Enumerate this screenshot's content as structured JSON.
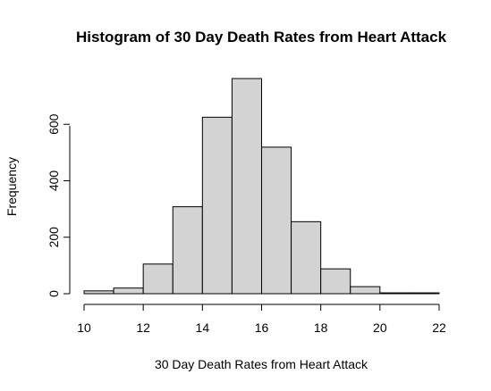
{
  "chart_data": {
    "type": "bar",
    "title": "Histogram of 30 Day Death Rates from Heart Attack",
    "xlabel": "30 Day Death Rates from Heart Attack",
    "ylabel": "Frequency",
    "bins": [
      {
        "from": 10,
        "to": 11,
        "count": 10
      },
      {
        "from": 11,
        "to": 12,
        "count": 20
      },
      {
        "from": 12,
        "to": 13,
        "count": 105
      },
      {
        "from": 13,
        "to": 14,
        "count": 308
      },
      {
        "from": 14,
        "to": 15,
        "count": 625
      },
      {
        "from": 15,
        "to": 16,
        "count": 762
      },
      {
        "from": 16,
        "to": 17,
        "count": 519
      },
      {
        "from": 17,
        "to": 18,
        "count": 255
      },
      {
        "from": 18,
        "to": 19,
        "count": 88
      },
      {
        "from": 19,
        "to": 20,
        "count": 25
      },
      {
        "from": 20,
        "to": 21,
        "count": 3
      },
      {
        "from": 21,
        "to": 22,
        "count": 3
      }
    ],
    "xticks": [
      "10",
      "12",
      "14",
      "16",
      "18",
      "20",
      "22"
    ],
    "yticks": [
      "0",
      "200",
      "400",
      "600"
    ],
    "xlim": [
      10,
      22
    ],
    "ylim": [
      0,
      762
    ],
    "grid": false,
    "bar_color": "#d3d3d3"
  }
}
